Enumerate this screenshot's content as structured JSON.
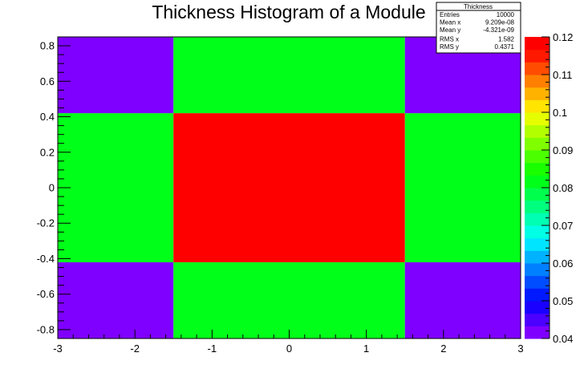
{
  "chart_data": {
    "type": "heatmap",
    "title": "Thickness Histogram of a Module",
    "xlim": [
      -3,
      3
    ],
    "ylim": [
      -0.85,
      0.85
    ],
    "xticks": [
      "-3",
      "-2",
      "-1",
      "0",
      "1",
      "2",
      "3"
    ],
    "yticks": [
      "-0.8",
      "-0.6",
      "-0.4",
      "-0.2",
      "0",
      "0.2",
      "0.4",
      "0.6",
      "0.8"
    ],
    "x_edges": [
      -3,
      -1.5,
      1.5,
      3
    ],
    "y_edges": [
      -0.85,
      -0.42,
      0.42,
      0.85
    ],
    "z": [
      [
        0.04,
        0.08,
        0.04
      ],
      [
        0.08,
        0.12,
        0.08
      ],
      [
        0.04,
        0.08,
        0.04
      ]
    ],
    "zlim": [
      0.04,
      0.12
    ],
    "zticks": [
      "0.04",
      "0.05",
      "0.06",
      "0.07",
      "0.08",
      "0.09",
      "0.1",
      "0.11",
      "0.12"
    ],
    "palette": [
      "#7f00ff",
      "#4c00ff",
      "#1900ff",
      "#0019ff",
      "#004cff",
      "#007fff",
      "#00b2ff",
      "#00e5ff",
      "#00ffe5",
      "#00ffb2",
      "#00ff7f",
      "#00ff4c",
      "#00ff19",
      "#19ff00",
      "#4cff00",
      "#7fff00",
      "#b2ff00",
      "#e5ff00",
      "#ffe500",
      "#ffb200",
      "#ff7f00",
      "#ff4c00",
      "#ff1900",
      "#ff0000"
    ],
    "grid": false
  },
  "stats_box": {
    "title": "Thickness",
    "rows": [
      {
        "label": "Entries",
        "value": "10000"
      },
      {
        "label": "Mean x",
        "value": "9.209e-08"
      },
      {
        "label": "Mean y",
        "value": "-4.321e-09"
      },
      {
        "label": "RMS x",
        "value": "1.582"
      },
      {
        "label": "RMS y",
        "value": "0.4371"
      }
    ]
  }
}
